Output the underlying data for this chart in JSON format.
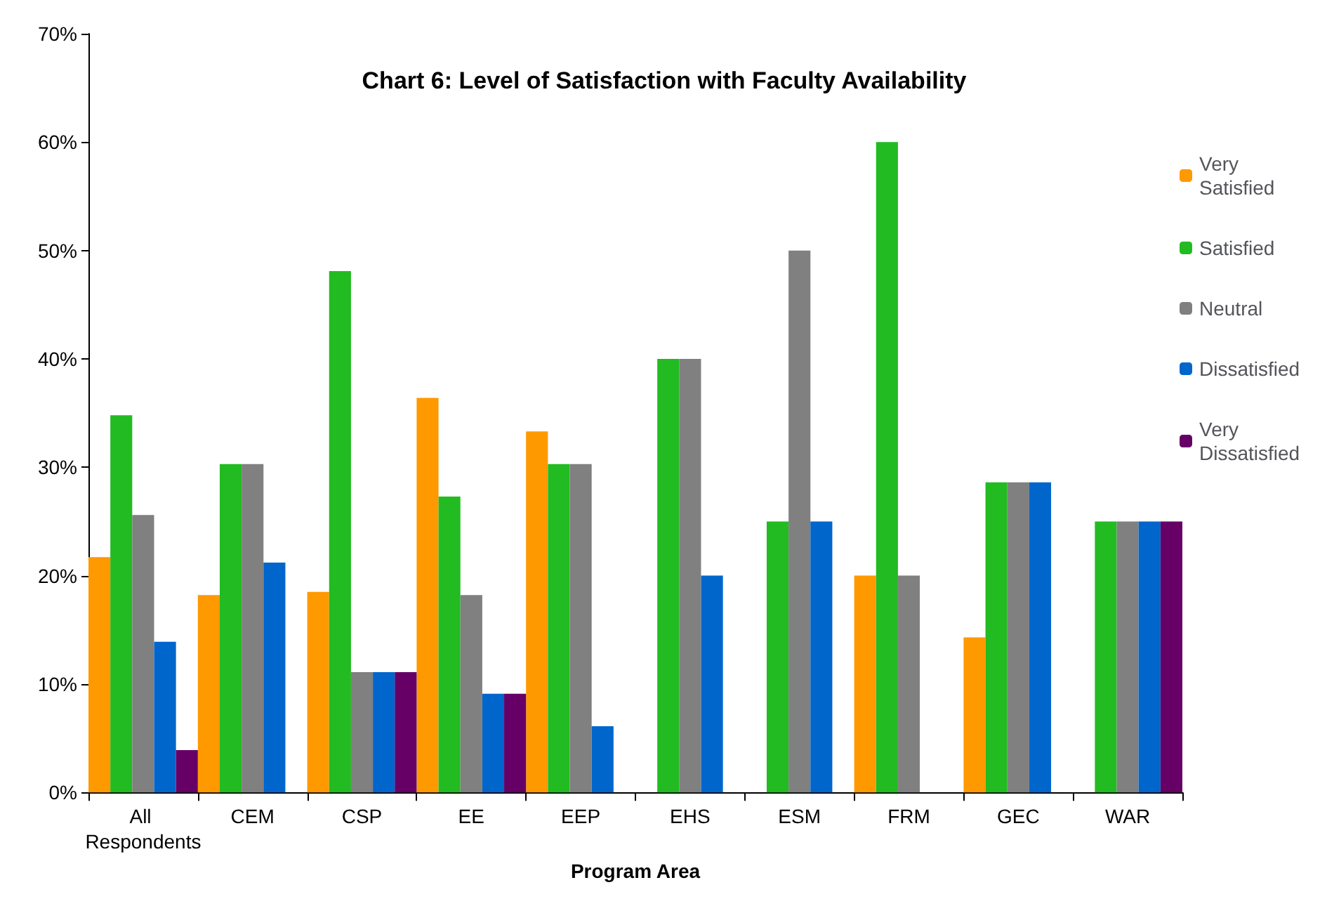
{
  "chart_data": {
    "type": "bar",
    "title": "Chart 6: Level of Satisfaction with Faculty Availability",
    "xlabel": "Program Area",
    "categories": [
      "All Respondents",
      "CEM",
      "CSP",
      "EE",
      "EEP",
      "EHS",
      "ESM",
      "FRM",
      "GEC",
      "WAR"
    ],
    "series": [
      {
        "name": "Very Satisfied",
        "color": "#ff9900",
        "values": [
          21.7,
          18.2,
          18.5,
          36.4,
          33.3,
          0,
          0,
          20,
          14.3,
          0
        ]
      },
      {
        "name": "Satisfied",
        "color": "#22bb22",
        "values": [
          34.8,
          30.3,
          48.1,
          27.3,
          30.3,
          40,
          25,
          60,
          28.6,
          25
        ]
      },
      {
        "name": "Neutral",
        "color": "#808080",
        "values": [
          25.6,
          30.3,
          11.1,
          18.2,
          30.3,
          40,
          50,
          20,
          28.6,
          25
        ]
      },
      {
        "name": "Dissatisfied",
        "color": "#0066cc",
        "values": [
          13.9,
          21.2,
          11.1,
          9.1,
          6.1,
          20,
          25,
          0,
          28.6,
          25
        ]
      },
      {
        "name": "Very Dissatisfied",
        "color": "#660066",
        "values": [
          3.9,
          0,
          11.1,
          9.1,
          0,
          0,
          0,
          0,
          0,
          25
        ]
      }
    ],
    "ylim": [
      0,
      70
    ],
    "yticks": [
      {
        "value": 0,
        "label": "0%"
      },
      {
        "value": 10,
        "label": "10%"
      },
      {
        "value": 20,
        "label": "20%"
      },
      {
        "value": 30,
        "label": "30%"
      },
      {
        "value": 40,
        "label": "40%"
      },
      {
        "value": 50,
        "label": "50%"
      },
      {
        "value": 60,
        "label": "60%"
      },
      {
        "value": 70,
        "label": "70%"
      }
    ],
    "grid": false,
    "legend": "right"
  }
}
